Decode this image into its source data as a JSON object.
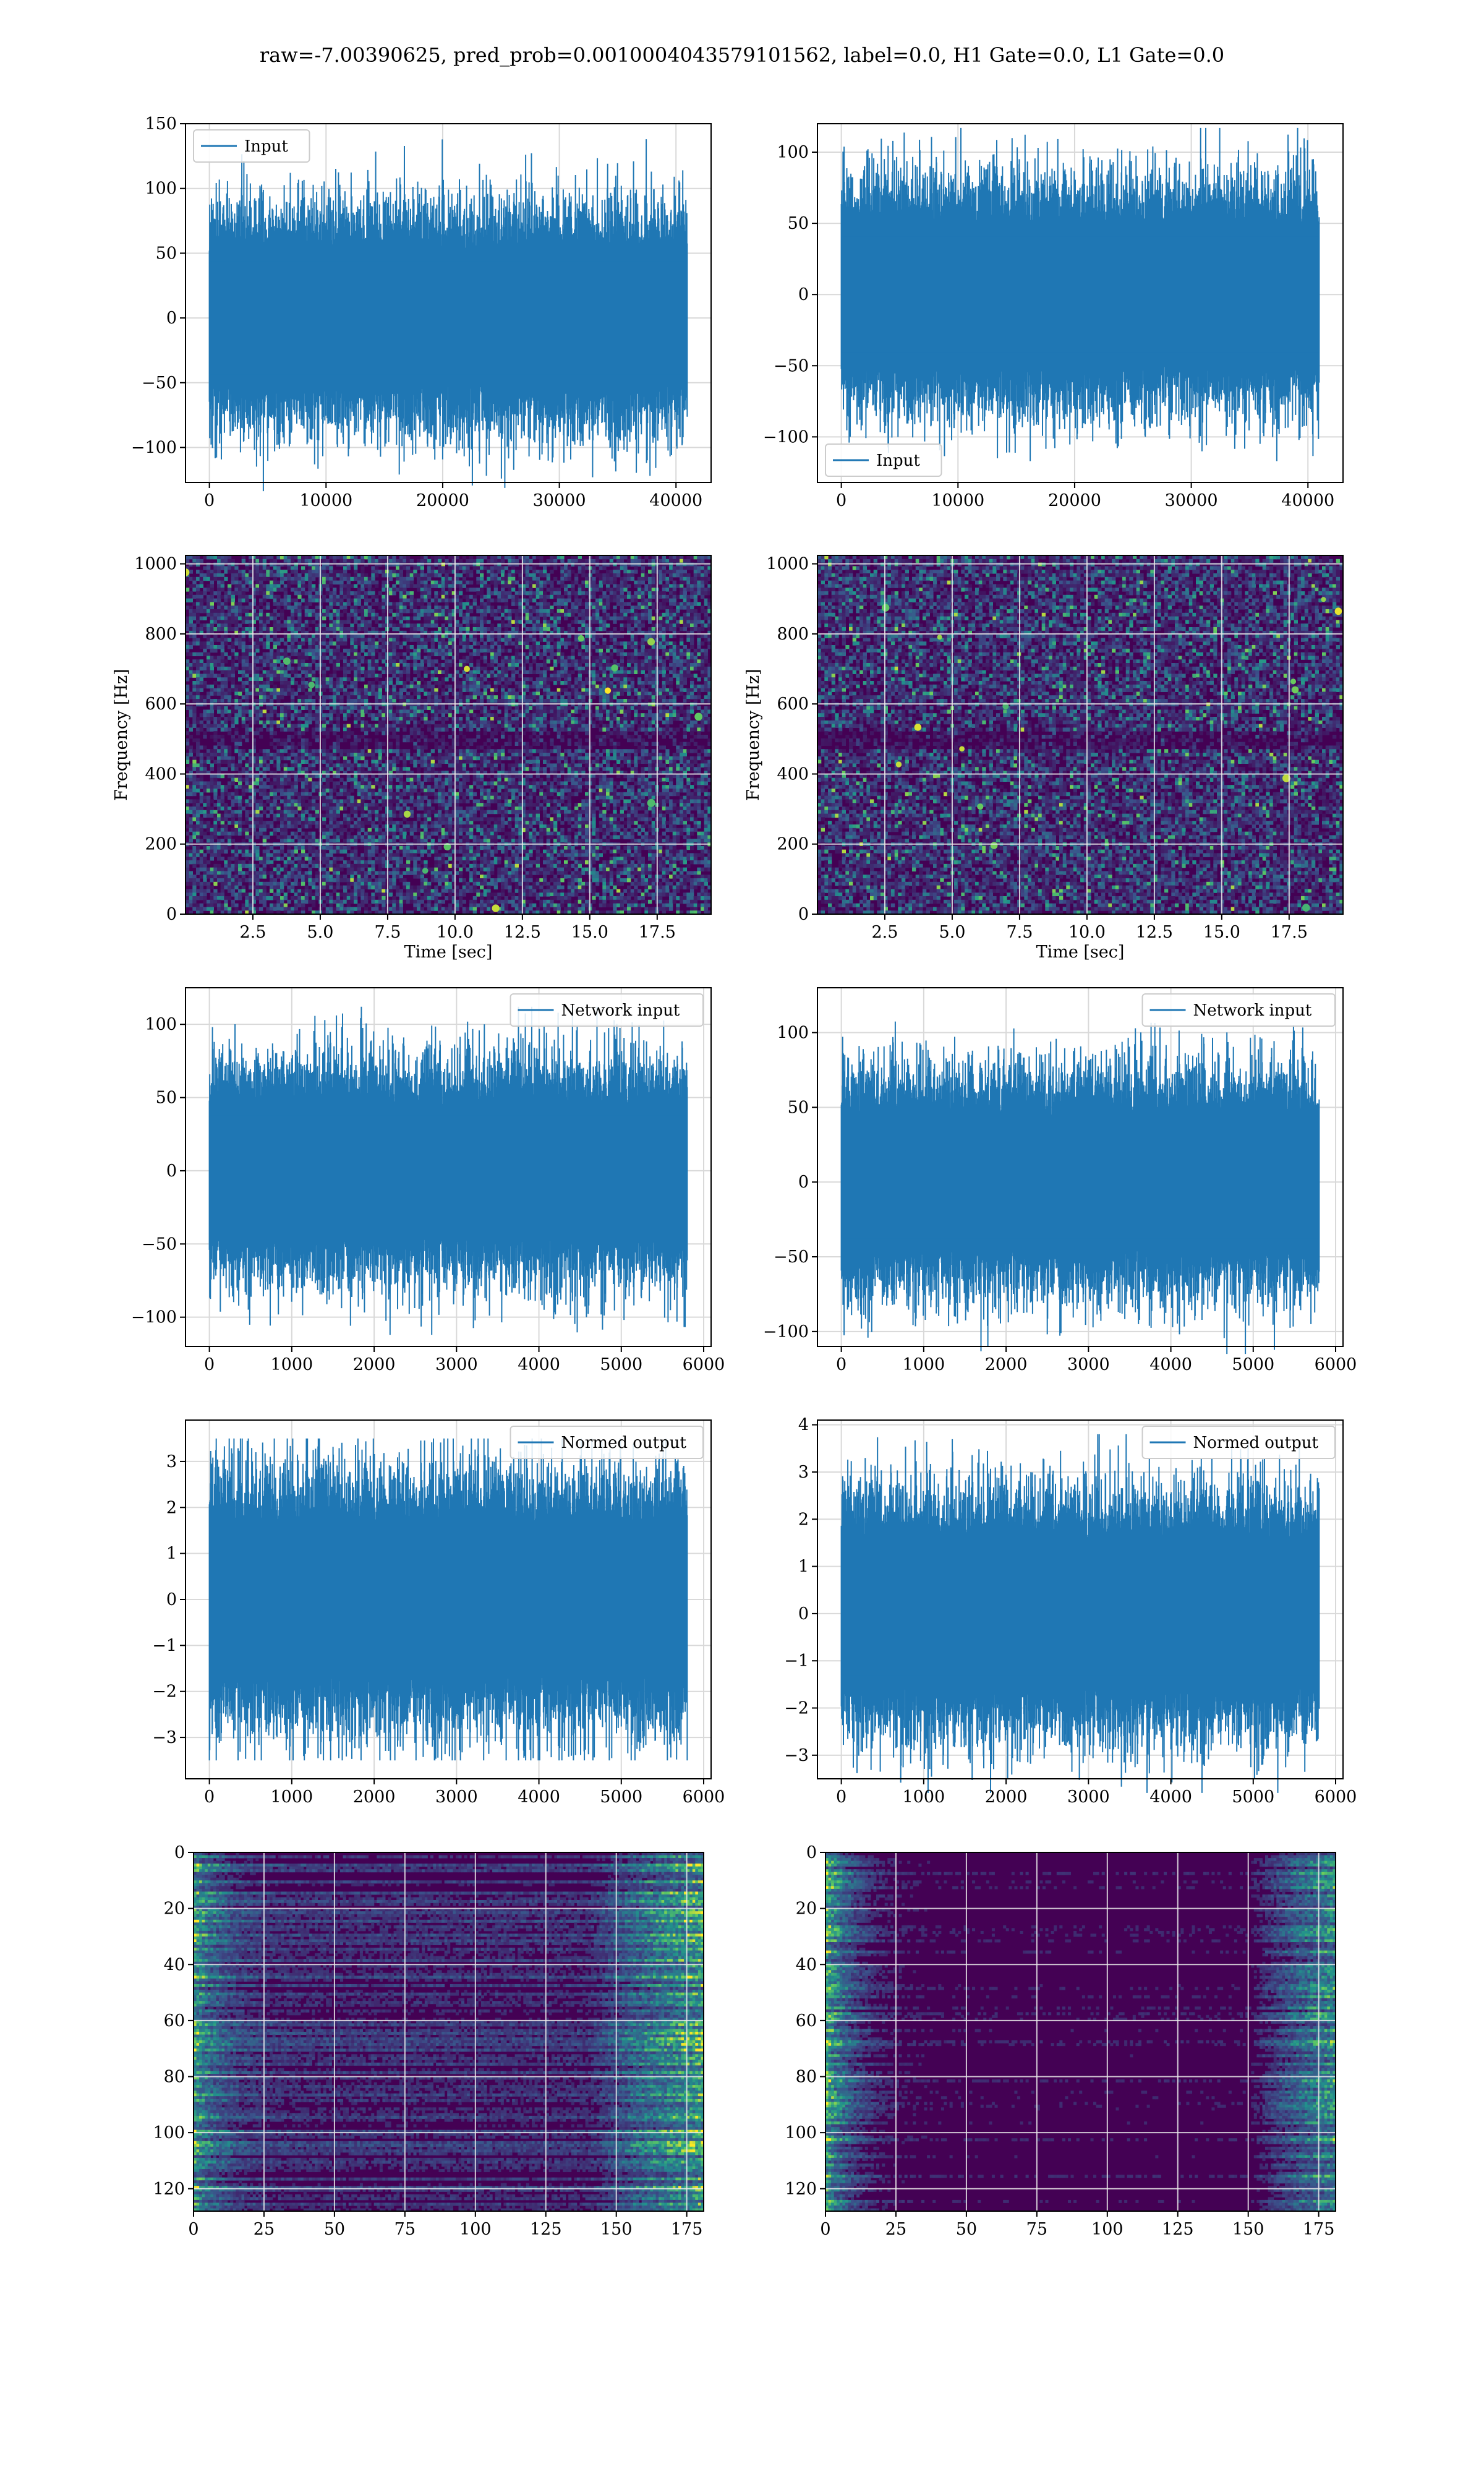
{
  "figure": {
    "suptitle": "raw=-7.00390625, pred_prob=0.0010004043579101562, label=0.0, H1 Gate=0.0, L1 Gate=0.0"
  },
  "colors": {
    "series": "#1f77b4",
    "grid": "#d9d9d9",
    "viridis_low": "#440154",
    "viridis_mid": "#21918c",
    "viridis_high": "#fde725"
  },
  "chart_data": [
    {
      "id": "ts-input-left",
      "type": "line",
      "legend": "Input",
      "legend_loc": "upper left",
      "samples": 40960,
      "amplitude_std": 30,
      "peak": 138,
      "xlim": [
        -2048,
        43008
      ],
      "xticks": [
        0,
        10000,
        20000,
        30000,
        40000
      ],
      "ylim": [
        -127,
        150
      ],
      "yticks": [
        -100,
        -50,
        0,
        50,
        100,
        150
      ]
    },
    {
      "id": "ts-input-right",
      "type": "line",
      "legend": "Input",
      "legend_loc": "lower left",
      "samples": 40960,
      "amplitude_std": 28,
      "peak": 117,
      "xlim": [
        -2048,
        43008
      ],
      "xticks": [
        0,
        10000,
        20000,
        30000,
        40000
      ],
      "ylim": [
        -132,
        120
      ],
      "yticks": [
        -100,
        -50,
        0,
        50,
        100
      ]
    },
    {
      "id": "spec-left",
      "type": "heatmap",
      "xlabel": "Time [sec]",
      "ylabel": "Frequency [Hz]",
      "xlim": [
        0,
        19.5
      ],
      "xticks": [
        2.5,
        5.0,
        7.5,
        10.0,
        12.5,
        15.0,
        17.5
      ],
      "ylim": [
        0,
        1024
      ],
      "yticks": [
        0,
        200,
        400,
        600,
        800,
        1000
      ],
      "colormap": "viridis",
      "dark_band_hz": 500
    },
    {
      "id": "spec-right",
      "type": "heatmap",
      "xlabel": "Time [sec]",
      "ylabel": "Frequency [Hz]",
      "xlim": [
        0,
        19.5
      ],
      "xticks": [
        2.5,
        5.0,
        7.5,
        10.0,
        12.5,
        15.0,
        17.5
      ],
      "ylim": [
        0,
        1024
      ],
      "yticks": [
        0,
        200,
        400,
        600,
        800,
        1000
      ],
      "colormap": "viridis",
      "dark_band_hz": 500
    },
    {
      "id": "ts-network-left",
      "type": "line",
      "legend": "Network input",
      "legend_loc": "upper right",
      "samples": 5800,
      "amplitude_std": 26,
      "peak": 112,
      "xlim": [
        -290,
        6090
      ],
      "xticks": [
        0,
        1000,
        2000,
        3000,
        4000,
        5000,
        6000
      ],
      "ylim": [
        -120,
        125
      ],
      "yticks": [
        -100,
        -50,
        0,
        50,
        100
      ]
    },
    {
      "id": "ts-network-right",
      "type": "line",
      "legend": "Network input",
      "legend_loc": "upper right",
      "samples": 5800,
      "amplitude_std": 26,
      "peak": 115,
      "xlim": [
        -290,
        6090
      ],
      "xticks": [
        0,
        1000,
        2000,
        3000,
        4000,
        5000,
        6000
      ],
      "ylim": [
        -110,
        130
      ],
      "yticks": [
        -100,
        -50,
        0,
        50,
        100
      ]
    },
    {
      "id": "ts-normed-left",
      "type": "line",
      "legend": "Normed output",
      "legend_loc": "upper right",
      "samples": 5800,
      "amplitude_std": 0.95,
      "peak": 3.5,
      "xlim": [
        -290,
        6090
      ],
      "xticks": [
        0,
        1000,
        2000,
        3000,
        4000,
        5000,
        6000
      ],
      "ylim": [
        -3.9,
        3.9
      ],
      "yticks": [
        -3,
        -2,
        -1,
        0,
        1,
        2,
        3
      ]
    },
    {
      "id": "ts-normed-right",
      "type": "line",
      "legend": "Normed output",
      "legend_loc": "upper right",
      "samples": 5800,
      "amplitude_std": 0.9,
      "peak": 3.8,
      "xlim": [
        -290,
        6090
      ],
      "xticks": [
        0,
        1000,
        2000,
        3000,
        4000,
        5000,
        6000
      ],
      "ylim": [
        -3.5,
        4.1
      ],
      "yticks": [
        -3,
        -2,
        -1,
        0,
        1,
        2,
        3,
        4
      ]
    },
    {
      "id": "mat-left",
      "type": "heatmap",
      "xlim": [
        0,
        181
      ],
      "xticks": [
        0,
        25,
        50,
        75,
        100,
        125,
        150,
        175
      ],
      "ylim": [
        128,
        0
      ],
      "yticks": [
        0,
        20,
        40,
        60,
        80,
        100,
        120
      ],
      "colormap": "viridis",
      "rows": 128,
      "cols": 181
    },
    {
      "id": "mat-right",
      "type": "heatmap",
      "xlim": [
        0,
        181
      ],
      "xticks": [
        0,
        25,
        50,
        75,
        100,
        125,
        150,
        175
      ],
      "ylim": [
        128,
        0
      ],
      "yticks": [
        0,
        20,
        40,
        60,
        80,
        100,
        120
      ],
      "colormap": "viridis",
      "rows": 128,
      "cols": 181
    }
  ]
}
